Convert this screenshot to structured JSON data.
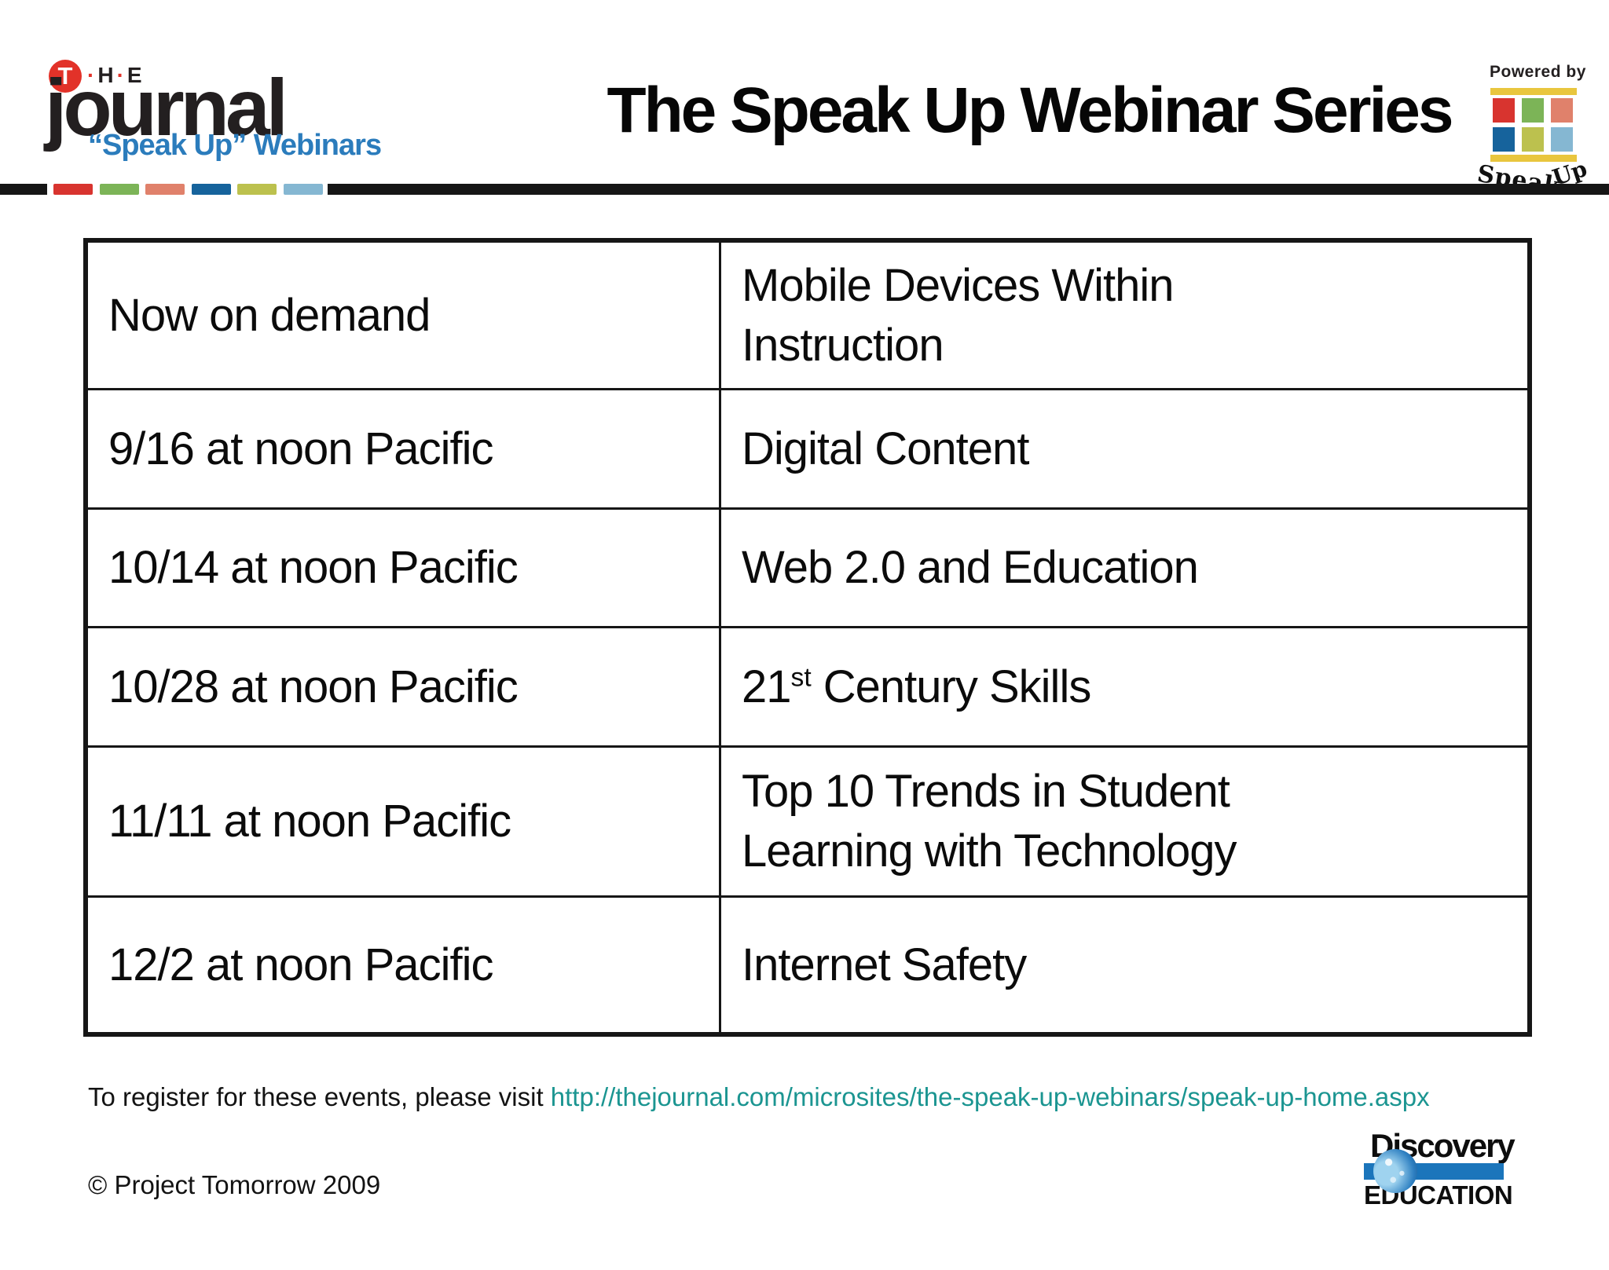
{
  "header": {
    "journal_logo": {
      "t_badge": "T",
      "the_parts": [
        {
          "t": "·",
          "red": true
        },
        {
          "t": "H",
          "red": false
        },
        {
          "t": "·",
          "red": true
        },
        {
          "t": "E",
          "red": false
        }
      ],
      "name": "journal",
      "tagline": "“Speak Up” Webinars",
      "tagline_color": "#2b7cbc"
    },
    "title": "The Speak Up Webinar Series",
    "powered_by": {
      "label": "Powered by",
      "brand_word1": "Speak",
      "brand_word2": "Up",
      "grid_colors": [
        "#d8342f",
        "#7cb457",
        "#e0816b",
        "#16639c",
        "#bcc14e",
        "#85b7d2"
      ],
      "bar_color": "#e9c63e"
    },
    "divider": {
      "black": "#161616",
      "dash_colors": [
        "#d8342f",
        "#7cb457",
        "#e0816b",
        "#16639c",
        "#bcc14e",
        "#85b7d2"
      ]
    }
  },
  "schedule": {
    "rows": [
      {
        "when": "Now on demand",
        "topic": [
          {
            "t": "Mobile Devices Within Instruction"
          }
        ]
      },
      {
        "when": "9/16 at noon Pacific",
        "topic": [
          {
            "t": "Digital Content"
          }
        ]
      },
      {
        "when": "10/14 at noon Pacific",
        "topic": [
          {
            "t": "Web 2.0 and Education"
          }
        ]
      },
      {
        "when": "10/28 at noon Pacific",
        "topic": [
          {
            "t": "21"
          },
          {
            "t": "st",
            "sup": true
          },
          {
            "t": " Century Skills"
          }
        ]
      },
      {
        "when": "11/11 at noon Pacific",
        "topic": [
          {
            "t": "Top 10 Trends in Student Learning with Technology"
          }
        ]
      },
      {
        "when": "12/2 at noon Pacific",
        "topic": [
          {
            "t": "Internet Safety"
          }
        ]
      }
    ]
  },
  "footer": {
    "register_text": "To register for these events, please visit ",
    "register_link": "http://thejournal.com/microsites/the-speak-up-webinars/speak-up-home.aspx",
    "link_color": "#1b9591",
    "copyright": "© Project Tomorrow 2009",
    "discovery_logo": {
      "line1": "Discovery",
      "line2": "EDUCATION",
      "bar_color": "#1b75bb"
    }
  }
}
